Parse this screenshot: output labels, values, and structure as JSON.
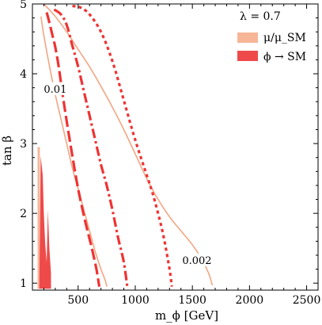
{
  "chart_data": {
    "type": "line",
    "title": "",
    "xlabel": "m_ϕ [GeV]",
    "ylabel": "tan β",
    "xlim": [
      100,
      2600
    ],
    "ylim": [
      0.9,
      5.0
    ],
    "xticks": [
      500,
      1000,
      1500,
      2000,
      2500
    ],
    "yticks": [
      1,
      2,
      3,
      4,
      5
    ],
    "grid": false,
    "legend_position": "top-right",
    "legend_title": "λ = 0.7",
    "legend": [
      {
        "label": "μ/μ_SM",
        "color": "#f7b597"
      },
      {
        "label": "ϕ → SM",
        "color": "#ef4a4a"
      }
    ],
    "annotations": [
      {
        "text": "0.01",
        "x": 300,
        "y": 3.75
      },
      {
        "text": "0.002",
        "x": 1540,
        "y": 1.3
      }
    ],
    "series": [
      {
        "group": "mu/mu_SM",
        "style": "solid",
        "color": "#f4a582",
        "x": [
          175,
          200,
          250,
          300,
          350,
          400,
          450,
          500,
          550,
          600,
          650,
          700,
          735,
          752
        ],
        "y": [
          4.82,
          4.55,
          4.1,
          3.7,
          3.35,
          3.0,
          2.65,
          2.35,
          2.05,
          1.75,
          1.45,
          1.2,
          1.05,
          0.95
        ]
      },
      {
        "group": "mu/mu_SM",
        "style": "solid",
        "color": "#f4a582",
        "x": [
          200,
          300,
          400,
          500,
          600,
          700,
          800,
          900,
          1000,
          1100,
          1200,
          1300,
          1400,
          1500,
          1580,
          1640,
          1675
        ],
        "y": [
          5.0,
          4.82,
          4.6,
          4.35,
          4.1,
          3.82,
          3.52,
          3.2,
          2.85,
          2.5,
          2.2,
          1.95,
          1.75,
          1.55,
          1.35,
          1.15,
          0.97
        ]
      },
      {
        "group": "phi->SM",
        "style": "dashed",
        "color": "#ee3333",
        "x": [
          225,
          250,
          275,
          300,
          330,
          360,
          400,
          450,
          500,
          560,
          620,
          660,
          685
        ],
        "y": [
          4.88,
          4.72,
          4.55,
          4.38,
          4.1,
          3.75,
          3.32,
          2.82,
          2.35,
          1.9,
          1.5,
          1.2,
          0.95
        ]
      },
      {
        "group": "phi->SM",
        "style": "dash-dot",
        "color": "#ee3333",
        "x": [
          290,
          350,
          400,
          450,
          500,
          550,
          600,
          650,
          700,
          750,
          800,
          850,
          900,
          930
        ],
        "y": [
          4.92,
          4.85,
          4.7,
          4.4,
          4.1,
          3.75,
          3.4,
          3.05,
          2.7,
          2.4,
          2.05,
          1.65,
          1.3,
          0.95
        ]
      },
      {
        "group": "phi->SM",
        "style": "dotted",
        "color": "#ee3333",
        "x": [
          450,
          520,
          600,
          700,
          800,
          900,
          1000,
          1100,
          1150,
          1200,
          1250,
          1300,
          1320
        ],
        "y": [
          4.97,
          4.95,
          4.85,
          4.6,
          4.18,
          3.62,
          3.05,
          2.55,
          2.3,
          2.0,
          1.65,
          1.2,
          0.95
        ]
      }
    ],
    "regions": [
      {
        "group": "mu/mu_SM",
        "color": "#f7b597",
        "x": [
          145,
          162,
          165,
          145
        ],
        "y": [
          0.92,
          0.92,
          2.95,
          2.95
        ]
      },
      {
        "group": "phi->SM",
        "color": "#ef4a4a",
        "x": [
          160,
          172,
          190,
          200,
          212,
          225,
          235,
          248,
          262,
          263,
          160
        ],
        "y": [
          0.92,
          2.82,
          2.55,
          2.0,
          1.55,
          1.3,
          2.05,
          1.5,
          1.15,
          0.92,
          0.92
        ]
      }
    ]
  }
}
